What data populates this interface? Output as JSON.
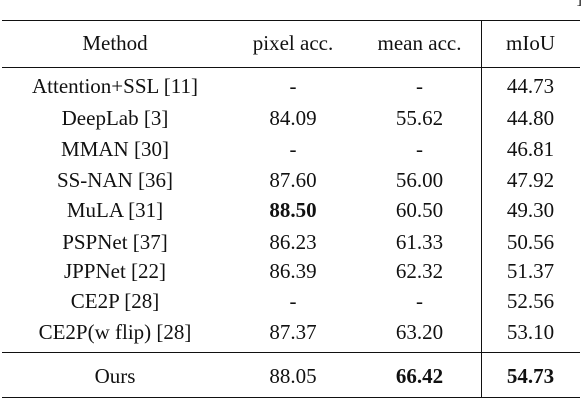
{
  "corner_mark": "]",
  "table": {
    "headers": [
      "Method",
      "pixel acc.",
      "mean acc.",
      "mIoU"
    ],
    "rows": [
      [
        "Attention+SSL [11]",
        "-",
        "-",
        "44.73"
      ],
      [
        "DeepLab [3]",
        "84.09",
        "55.62",
        "44.80"
      ],
      [
        "MMAN [30]",
        "-",
        "-",
        "46.81"
      ],
      [
        "SS-NAN [36]",
        "87.60",
        "56.00",
        "47.92"
      ],
      [
        "MuLA [31]",
        "88.50",
        "60.50",
        "49.30"
      ],
      [
        "PSPNet [37]",
        "86.23",
        "61.33",
        "50.56"
      ],
      [
        "JPPNet [22]",
        "86.39",
        "62.32",
        "51.37"
      ],
      [
        "CE2P [28]",
        "-",
        "-",
        "52.56"
      ],
      [
        "CE2P(w flip) [28]",
        "87.37",
        "63.20",
        "53.10"
      ]
    ],
    "final_row": [
      "Ours",
      "88.05",
      "66.42",
      "54.73"
    ]
  }
}
